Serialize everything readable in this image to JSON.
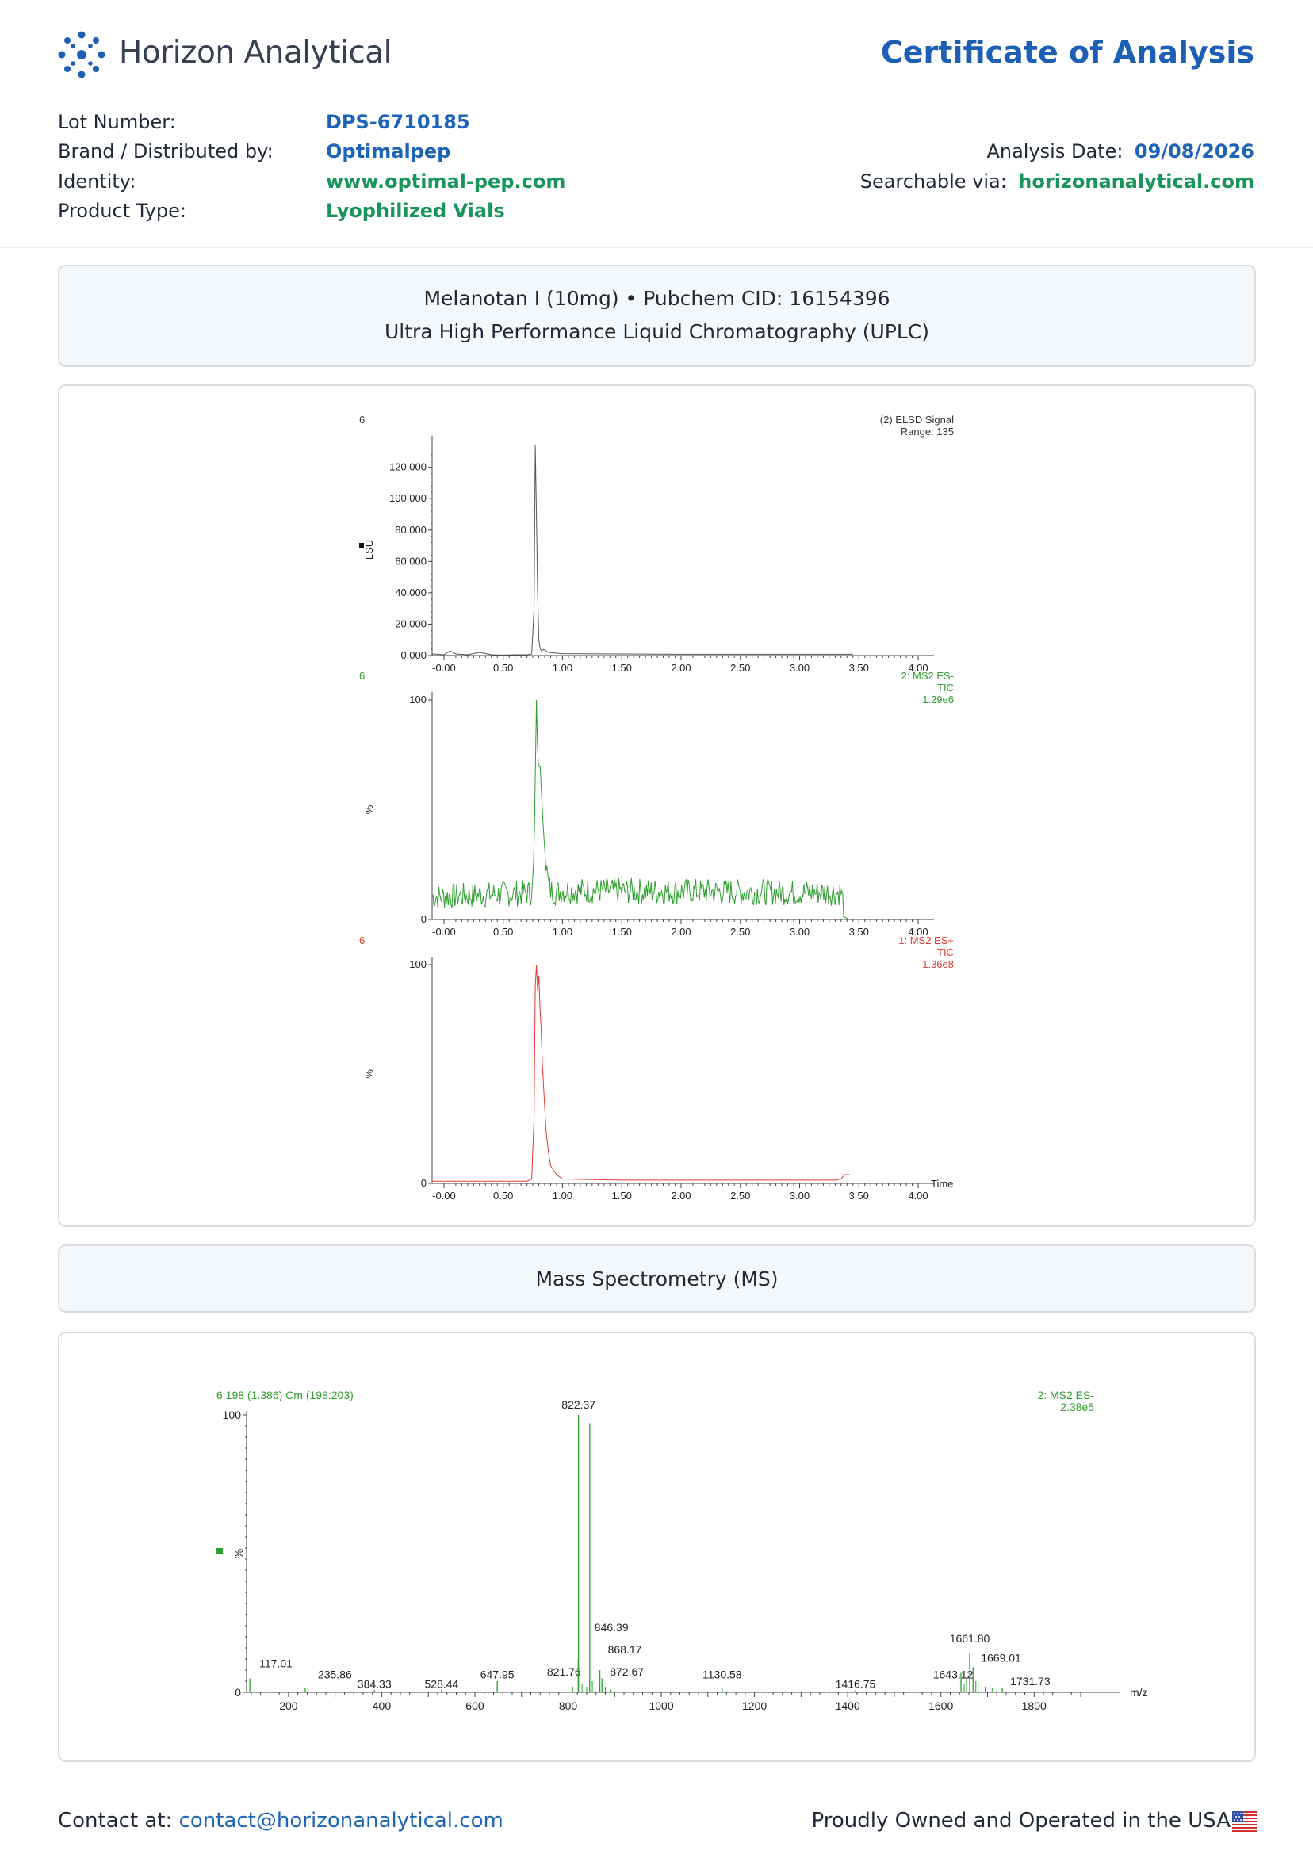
{
  "header": {
    "brand_name": "Horizon Analytical",
    "logo_icon": "molecule-logo-icon",
    "title": "Certificate of Analysis",
    "brand_color": "#1d5fb4",
    "accent_green": "#17955a"
  },
  "details": {
    "lot_label": "Lot Number:",
    "lot_value": "DPS-6710185",
    "brand_label": "Brand / Distributed by:",
    "brand_value": "Optimalpep",
    "identity_label": "Identity:",
    "identity_value": "www.optimal-pep.com",
    "type_label": "Product Type:",
    "type_value": "Lyophilized Vials",
    "date_label": "Analysis Date:",
    "date_value": "09/08/2026",
    "search_label": "Searchable via:",
    "search_value": "horizonanalytical.com"
  },
  "uplc_header": {
    "line1": "Melanotan I (10mg) • Pubchem CID: 16154396",
    "line2": "Ultra High Performance Liquid Chromatography (UPLC)"
  },
  "ms_header": {
    "title": "Mass Spectrometry (MS)"
  },
  "chart_data": [
    {
      "type": "line",
      "series": [
        {
          "name": "(2) ELSD Signal",
          "color": "#555555",
          "x": [
            -0.1,
            0.0,
            0.05,
            0.1,
            0.2,
            0.3,
            0.4,
            0.5,
            0.6,
            0.7,
            0.74,
            0.76,
            0.77,
            0.78,
            0.79,
            0.8,
            0.81,
            0.82,
            0.84,
            0.88,
            0.95,
            1.0,
            1.5,
            2.0,
            2.5,
            3.0,
            3.45
          ],
          "y": [
            1,
            0.5,
            3,
            1,
            0.5,
            2,
            0.5,
            0.3,
            0.5,
            0.5,
            1,
            30,
            134,
            90,
            40,
            10,
            5,
            3,
            4,
            2,
            1.5,
            1.2,
            1,
            0.8,
            0.8,
            0.8,
            0.8
          ]
        }
      ],
      "top_left": "6",
      "annotation_lines": [
        "(2) ELSD Signal",
        "Range: 135"
      ],
      "ylabel": "LSU",
      "y_ticks": [
        "0.000",
        "20.000",
        "40.000",
        "60.000",
        "80.000",
        "100.000",
        "120.000"
      ],
      "x_ticks": [
        "-0.00",
        "0.50",
        "1.00",
        "1.50",
        "2.00",
        "2.50",
        "3.00",
        "3.50",
        "4.00"
      ],
      "xlim": [
        -0.1,
        4.0
      ],
      "ylim": [
        0,
        135
      ]
    },
    {
      "type": "line",
      "series": [
        {
          "name": "2: MS2 ES-",
          "color": "#2e9e2e",
          "x": [
            -0.1,
            0.74,
            0.76,
            0.78,
            0.79,
            0.8,
            0.81,
            0.82,
            0.84,
            0.86,
            0.88,
            0.9,
            0.95,
            1.0,
            3.35,
            3.38,
            3.42
          ],
          "y": [
            9,
            11,
            30,
            100,
            75,
            68,
            72,
            60,
            40,
            25,
            15,
            12,
            11,
            12,
            11,
            3,
            0
          ]
        }
      ],
      "top_left": "6",
      "annotation_lines": [
        "2: MS2 ES-",
        "TIC",
        "1.29e6"
      ],
      "ylabel": "%",
      "y_ticks": [
        "0",
        "100"
      ],
      "x_ticks": [
        "-0.00",
        "0.50",
        "1.00",
        "1.50",
        "2.00",
        "2.50",
        "3.00",
        "3.50",
        "4.00"
      ],
      "xlim": [
        -0.1,
        4.0
      ],
      "ylim": [
        0,
        100
      ]
    },
    {
      "type": "line",
      "series": [
        {
          "name": "1: MS2 ES+",
          "color": "#e53935",
          "x": [
            -0.1,
            0.7,
            0.74,
            0.76,
            0.77,
            0.78,
            0.79,
            0.8,
            0.81,
            0.82,
            0.83,
            0.84,
            0.85,
            0.86,
            0.88,
            0.9,
            0.95,
            1.0,
            1.5,
            2.0,
            2.5,
            3.0,
            3.3,
            3.35,
            3.38,
            3.42
          ],
          "y": [
            1,
            1,
            2,
            30,
            90,
            100,
            88,
            95,
            80,
            70,
            55,
            45,
            35,
            25,
            15,
            8,
            4,
            2,
            1.5,
            1.5,
            1.5,
            1.5,
            1.5,
            2,
            4,
            4
          ]
        }
      ],
      "top_left": "6",
      "annotation_lines": [
        "1: MS2 ES+",
        "TIC",
        "1.36e8"
      ],
      "ylabel": "%",
      "xlabel": "Time",
      "y_ticks": [
        "0",
        "100"
      ],
      "x_ticks": [
        "-0.00",
        "0.50",
        "1.00",
        "1.50",
        "2.00",
        "2.50",
        "3.00",
        "3.50",
        "4.00"
      ],
      "xlim": [
        -0.1,
        4.0
      ],
      "ylim": [
        0,
        100
      ]
    },
    {
      "type": "bar",
      "title": "6 198 (1.386) Cm (198:203)",
      "annotation_lines": [
        "2: MS2 ES-",
        "2.38e5"
      ],
      "ylabel": "%",
      "xlabel": "m/z",
      "y_ticks": [
        "0",
        "100"
      ],
      "x_ticks": [
        "200",
        "400",
        "600",
        "800",
        "1000",
        "1200",
        "1400",
        "1600",
        "1800"
      ],
      "xlim": [
        110,
        1900
      ],
      "ylim": [
        0,
        100
      ],
      "peaks": [
        {
          "mz": 117.01,
          "int": 5,
          "label": "117.01"
        },
        {
          "mz": 235.86,
          "int": 1.5,
          "label": "235.86"
        },
        {
          "mz": 384.33,
          "int": 0.8,
          "label": "384.33"
        },
        {
          "mz": 528.44,
          "int": 0.8,
          "label": "528.44"
        },
        {
          "mz": 647.95,
          "int": 4,
          "label": "647.95"
        },
        {
          "mz": 821.76,
          "int": 12,
          "label": "821.76"
        },
        {
          "mz": 822.37,
          "int": 100,
          "label": "822.37"
        },
        {
          "mz": 846.39,
          "int": 97,
          "label": "846.39"
        },
        {
          "mz": 868.17,
          "int": 8,
          "label": "868.17"
        },
        {
          "mz": 872.67,
          "int": 5,
          "label": "872.67"
        },
        {
          "mz": 1130.58,
          "int": 1.5,
          "label": "1130.58"
        },
        {
          "mz": 1416.75,
          "int": 0.8,
          "label": "1416.75"
        },
        {
          "mz": 1643.12,
          "int": 7,
          "label": "1643.12"
        },
        {
          "mz": 1661.8,
          "int": 14,
          "label": "1661.80"
        },
        {
          "mz": 1669.01,
          "int": 9,
          "label": "1669.01"
        },
        {
          "mz": 1731.73,
          "int": 1.5,
          "label": "1731.73"
        }
      ]
    }
  ],
  "footer": {
    "contact_label": "Contact at:",
    "contact_email": "contact@horizonanalytical.com",
    "made_in": "Proudly Owned and Operated in the USA",
    "flag_icon": "us-flag-icon"
  }
}
